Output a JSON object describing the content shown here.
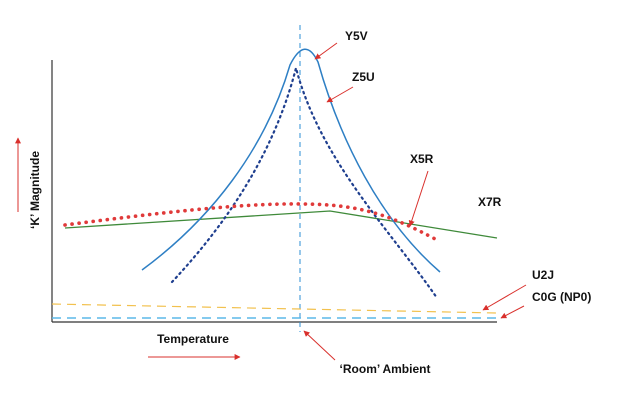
{
  "axes": {
    "y_label": "‘K’ Magnitude",
    "x_label": "Temperature"
  },
  "curves": [
    {
      "label": "Y5V"
    },
    {
      "label": "Z5U"
    },
    {
      "label": "X5R"
    },
    {
      "label": "X7R"
    },
    {
      "label": "U2J"
    },
    {
      "label": "C0G (NP0)"
    }
  ],
  "annotations": {
    "room": "‘Room’ Ambient"
  }
}
